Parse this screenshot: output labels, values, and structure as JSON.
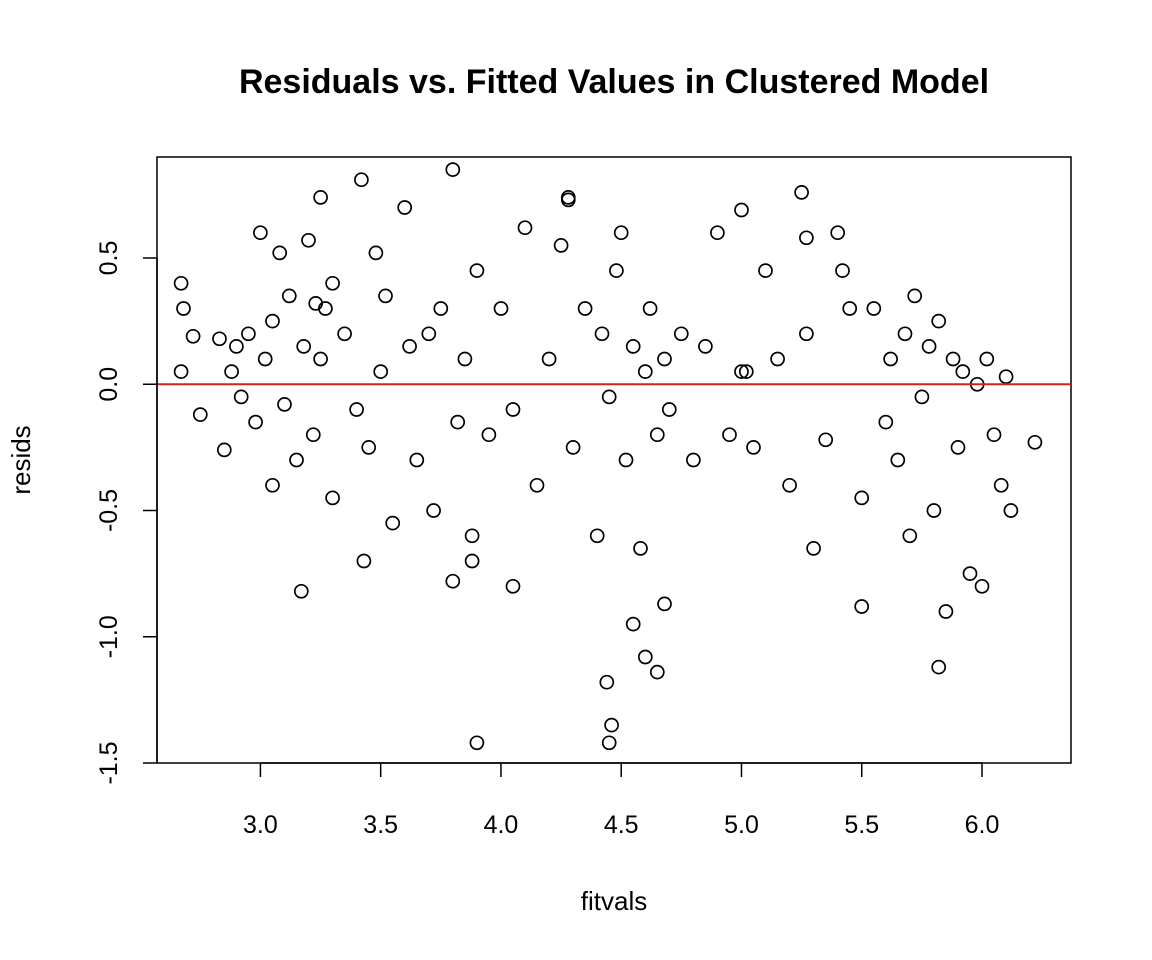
{
  "chart_data": {
    "type": "scatter",
    "title": "Residuals vs. Fitted Values in Clustered Model",
    "xlabel": "fitvals",
    "ylabel": "resids",
    "xlim": [
      2.57,
      6.37
    ],
    "ylim": [
      -1.5,
      0.9
    ],
    "xticks": [
      3.0,
      3.5,
      4.0,
      4.5,
      5.0,
      5.5,
      6.0
    ],
    "xtick_labels": [
      "3.0",
      "3.5",
      "4.0",
      "4.5",
      "5.0",
      "5.5",
      "6.0"
    ],
    "yticks": [
      -1.5,
      -1.0,
      -0.5,
      0.0,
      0.5
    ],
    "ytick_labels": [
      "-1.5",
      "-1.0",
      "-0.5",
      "0.0",
      "0.5"
    ],
    "reference_line": {
      "y": 0.0,
      "color": "#d62020"
    },
    "point_style": "open circles",
    "grid": false,
    "x": [
      2.67,
      2.67,
      2.68,
      2.72,
      2.75,
      2.83,
      2.85,
      2.88,
      2.9,
      2.92,
      2.95,
      2.98,
      3.0,
      3.02,
      3.05,
      3.05,
      3.08,
      3.1,
      3.12,
      3.15,
      3.18,
      3.2,
      3.22,
      3.25,
      3.25,
      3.27,
      3.3,
      3.35,
      3.4,
      3.42,
      3.45,
      3.48,
      3.5,
      3.52,
      3.55,
      3.6,
      3.62,
      3.65,
      3.7,
      3.72,
      3.75,
      3.8,
      3.82,
      3.85,
      3.88,
      3.9,
      3.95,
      4.0,
      4.05,
      4.1,
      4.15,
      4.2,
      4.25,
      4.28,
      4.3,
      4.35,
      4.4,
      4.42,
      4.45,
      4.48,
      4.5,
      4.52,
      4.55,
      4.58,
      4.6,
      4.62,
      4.65,
      4.68,
      4.7,
      4.75,
      4.8,
      4.85,
      4.9,
      4.95,
      5.0,
      5.02,
      5.05,
      5.1,
      5.15,
      5.2,
      5.25,
      5.27,
      5.3,
      5.35,
      5.4,
      5.42,
      5.45,
      5.5,
      5.55,
      5.6,
      5.62,
      5.65,
      5.68,
      5.7,
      5.72,
      5.75,
      5.78,
      5.8,
      5.82,
      5.85,
      5.88,
      5.9,
      5.92,
      5.95,
      5.98,
      6.0,
      6.02,
      6.05,
      6.08,
      6.1,
      6.12,
      6.22,
      3.17,
      3.43,
      3.8,
      3.9,
      4.44,
      4.46,
      4.65,
      5.27,
      4.28,
      3.23,
      4.45,
      4.6,
      4.55,
      5.82,
      3.88,
      4.05,
      4.68,
      5.0,
      5.5,
      3.3
    ],
    "y": [
      0.4,
      0.05,
      0.3,
      0.19,
      -0.12,
      0.18,
      -0.26,
      0.05,
      0.15,
      -0.05,
      0.2,
      -0.15,
      0.6,
      0.1,
      -0.4,
      0.25,
      0.52,
      -0.08,
      0.35,
      -0.3,
      0.15,
      0.57,
      -0.2,
      0.74,
      0.1,
      0.3,
      -0.45,
      0.2,
      -0.1,
      0.81,
      -0.25,
      0.52,
      0.05,
      0.35,
      -0.55,
      0.7,
      0.15,
      -0.3,
      0.2,
      -0.5,
      0.3,
      0.85,
      -0.15,
      0.1,
      -0.6,
      0.45,
      -0.2,
      0.3,
      -0.1,
      0.62,
      -0.4,
      0.1,
      0.55,
      0.74,
      -0.25,
      0.3,
      -0.6,
      0.2,
      -0.05,
      0.45,
      0.6,
      -0.3,
      0.15,
      -0.65,
      0.05,
      0.3,
      -0.2,
      0.1,
      -0.1,
      0.2,
      -0.3,
      0.15,
      0.6,
      -0.2,
      0.69,
      0.05,
      -0.25,
      0.45,
      0.1,
      -0.4,
      0.76,
      0.2,
      -0.65,
      -0.22,
      0.6,
      0.45,
      0.3,
      -0.45,
      0.3,
      -0.15,
      0.1,
      -0.3,
      0.2,
      -0.6,
      0.35,
      -0.05,
      0.15,
      -0.5,
      0.25,
      -0.9,
      0.1,
      -0.25,
      0.05,
      -0.75,
      0.0,
      -0.8,
      0.1,
      -0.2,
      -0.4,
      0.03,
      -0.5,
      -0.23,
      -0.82,
      -0.7,
      -0.78,
      -1.42,
      -1.18,
      -1.35,
      -1.14,
      0.58,
      0.73,
      0.32,
      -1.42,
      -1.08,
      -0.95,
      -1.12,
      -0.7,
      -0.8,
      -0.87,
      0.05,
      -0.88,
      0.4
    ]
  }
}
